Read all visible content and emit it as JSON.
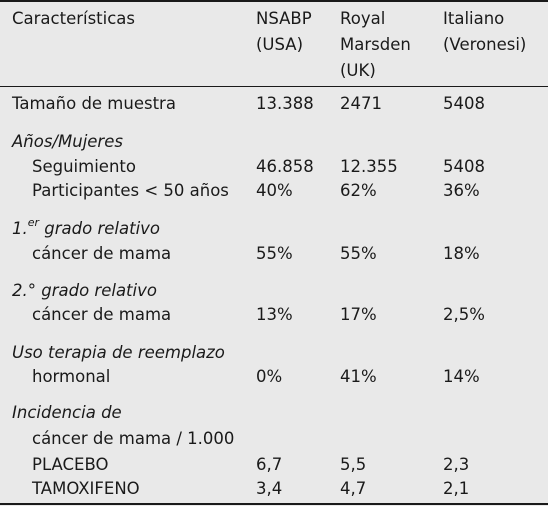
{
  "header": {
    "col1": "Características",
    "col2": [
      "NSABP",
      "(USA)"
    ],
    "col3": [
      "Royal",
      "Marsden",
      "(UK)"
    ],
    "col4": [
      "Italiano",
      "(Veronesi)"
    ]
  },
  "rows": {
    "sample": {
      "label": "Tamaño de muestra",
      "v": [
        "13.388",
        "2471",
        "5408"
      ]
    },
    "years_heading": "Años/Mujeres",
    "followup": {
      "label": "Seguimiento",
      "v": [
        "46.858",
        "12.355",
        "5408"
      ]
    },
    "participants": {
      "label": "Participantes < 50 años",
      "v": [
        "40%",
        "62%",
        "36%"
      ]
    },
    "first_degree_heading_num": "1.",
    "first_degree_heading_sup": "er",
    "first_degree_heading_rest": " grado relativo",
    "first_degree": {
      "label": "cáncer de mama",
      "v": [
        "55%",
        "55%",
        "18%"
      ]
    },
    "second_degree_heading": "2.° grado relativo",
    "second_degree": {
      "label": "cáncer de mama",
      "v": [
        "13%",
        "17%",
        "2,5%"
      ]
    },
    "hrt_heading": "Uso terapia de reemplazo",
    "hrt": {
      "label": "hormonal",
      "v": [
        "0%",
        "41%",
        "14%"
      ]
    },
    "incidence_heading": "Incidencia de",
    "incidence_sub": "cáncer de mama / 1.000",
    "placebo": {
      "label": "PLACEBO",
      "v": [
        "6,7",
        "5,5",
        "2,3"
      ]
    },
    "tamoxifen": {
      "label": "TAMOXIFENO",
      "v": [
        "3,4",
        "4,7",
        "2,1"
      ]
    }
  }
}
